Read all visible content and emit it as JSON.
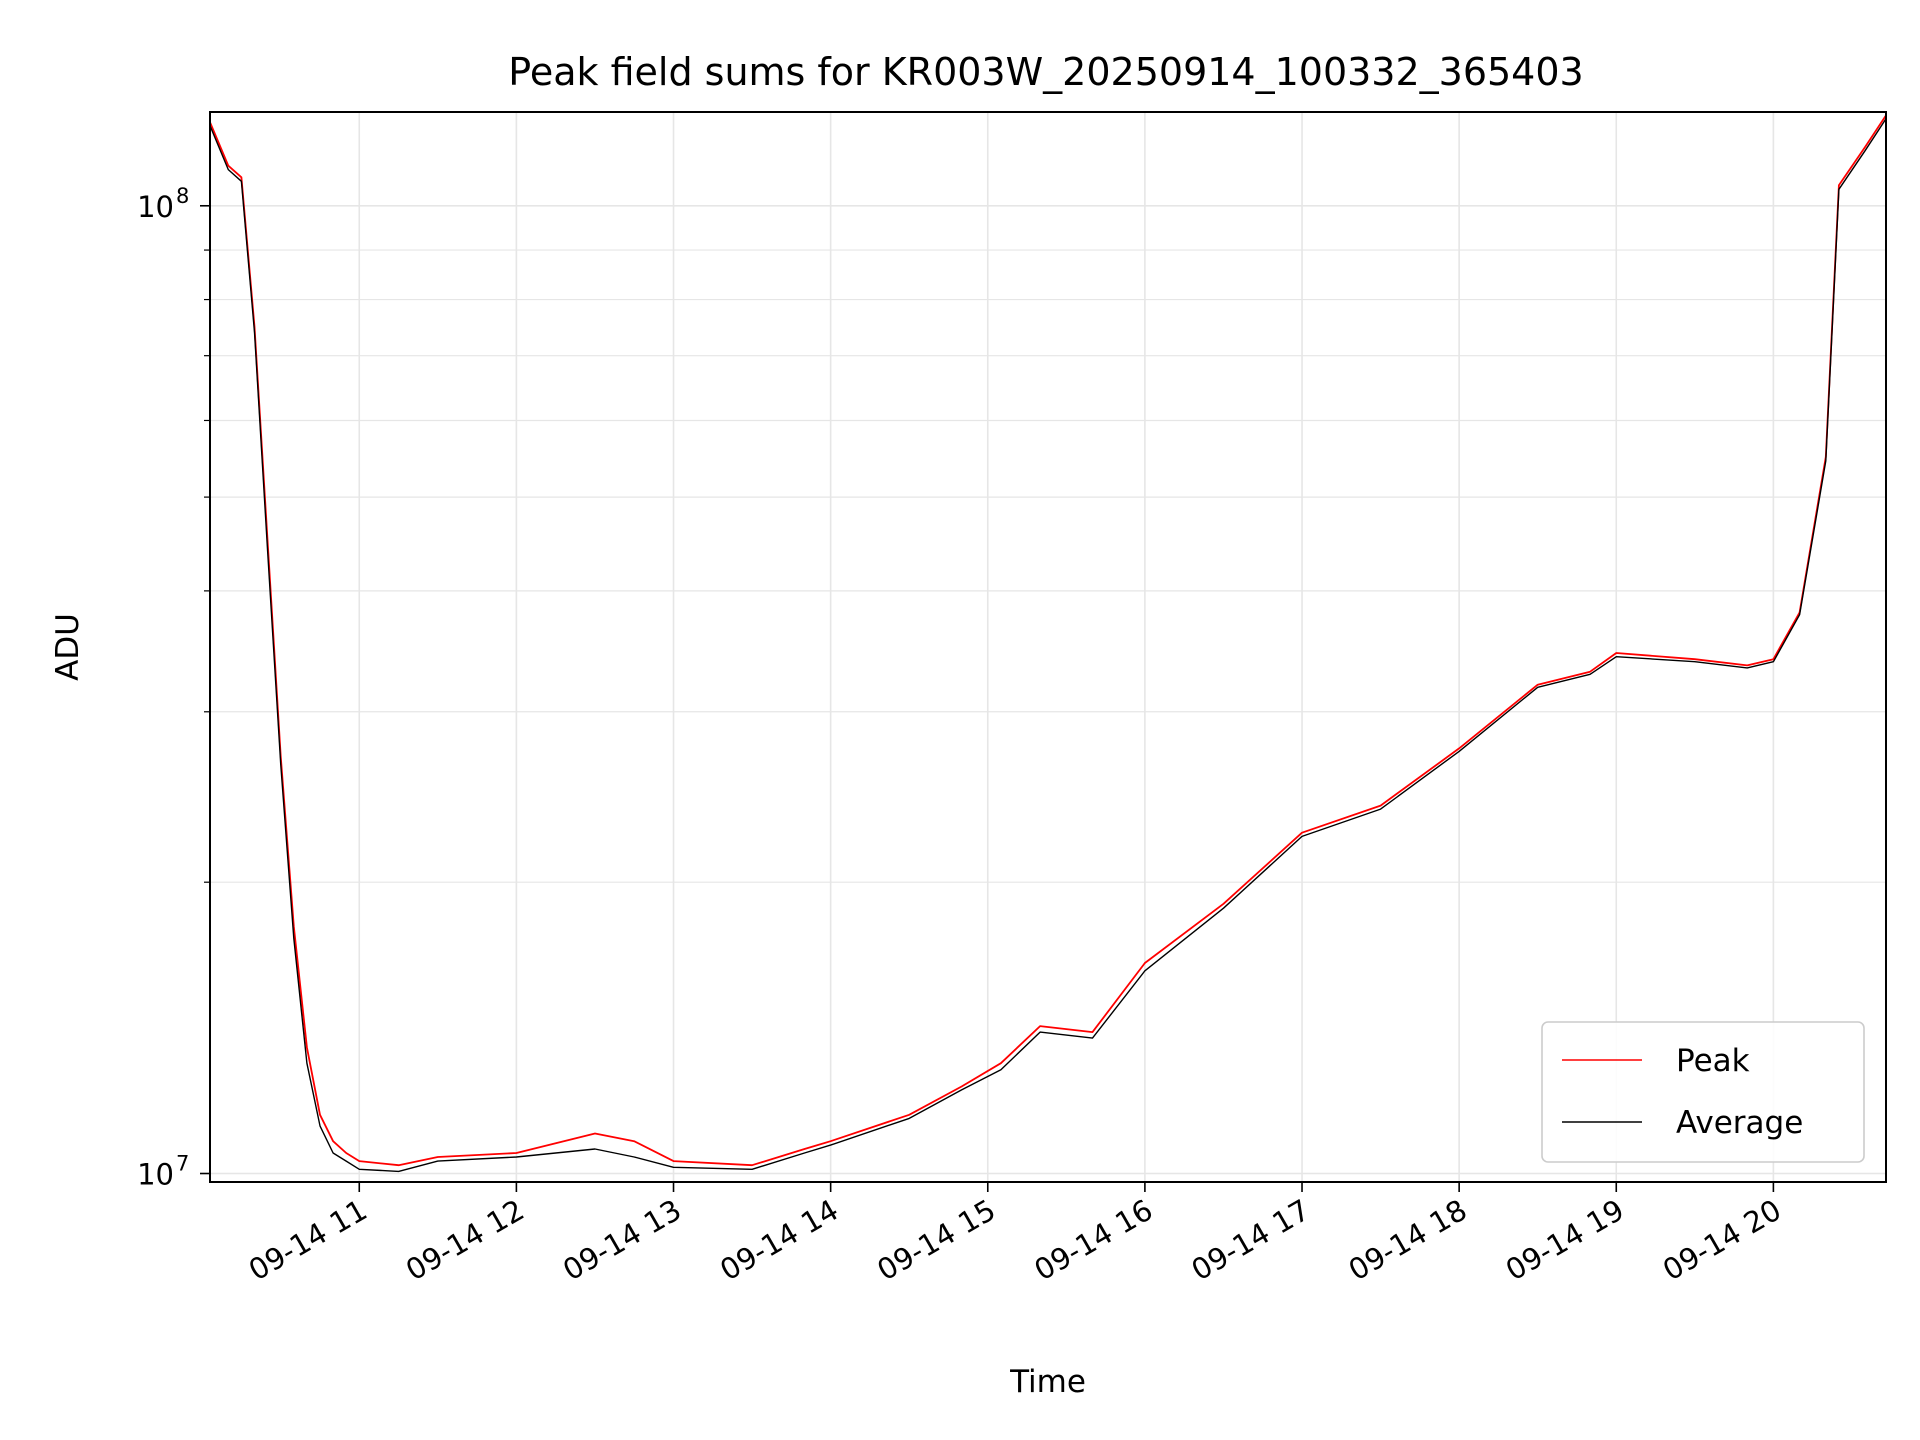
{
  "chart_data": {
    "type": "line",
    "title": "Peak field sums for KR003W_20250914_100332_365403",
    "xlabel": "Time",
    "ylabel": "ADU",
    "y_scale": "log",
    "ylim": [
      9800000,
      125000000
    ],
    "xlim": [
      "2025-09-14 10:03",
      "2025-09-14 20:43"
    ],
    "x_ticks": [
      "09-14 11",
      "09-14 12",
      "09-14 13",
      "09-14 14",
      "09-14 15",
      "09-14 16",
      "09-14 17",
      "09-14 18",
      "09-14 19",
      "09-14 20"
    ],
    "y_ticks": [
      {
        "base": "10",
        "exp": "7",
        "value": 10000000
      },
      {
        "base": "10",
        "exp": "8",
        "value": 100000000
      }
    ],
    "grid": true,
    "legend": "bottom-right",
    "series": [
      {
        "name": "Peak",
        "color": "#ff0000",
        "x": [
          "2025-09-14 10:03",
          "2025-09-14 10:10",
          "2025-09-14 10:15",
          "2025-09-14 10:20",
          "2025-09-14 10:25",
          "2025-09-14 10:30",
          "2025-09-14 10:35",
          "2025-09-14 10:40",
          "2025-09-14 10:45",
          "2025-09-14 10:50",
          "2025-09-14 10:55",
          "2025-09-14 11:00",
          "2025-09-14 11:15",
          "2025-09-14 11:30",
          "2025-09-14 12:00",
          "2025-09-14 12:30",
          "2025-09-14 12:45",
          "2025-09-14 13:00",
          "2025-09-14 13:30",
          "2025-09-14 13:50",
          "2025-09-14 14:00",
          "2025-09-14 14:30",
          "2025-09-14 14:50",
          "2025-09-14 15:05",
          "2025-09-14 15:20",
          "2025-09-14 15:40",
          "2025-09-14 16:00",
          "2025-09-14 16:30",
          "2025-09-14 17:00",
          "2025-09-14 17:30",
          "2025-09-14 18:00",
          "2025-09-14 18:30",
          "2025-09-14 18:50",
          "2025-09-14 19:00",
          "2025-09-14 19:30",
          "2025-09-14 19:50",
          "2025-09-14 20:00",
          "2025-09-14 20:10",
          "2025-09-14 20:20",
          "2025-09-14 20:25",
          "2025-09-14 20:35",
          "2025-09-14 20:43"
        ],
        "values": [
          122000000,
          110000000,
          107000000,
          75000000,
          45000000,
          27000000,
          18000000,
          13500000,
          11500000,
          10800000,
          10500000,
          10300000,
          10200000,
          10400000,
          10500000,
          11000000,
          10800000,
          10300000,
          10200000,
          10600000,
          10800000,
          11500000,
          12300000,
          13000000,
          14200000,
          14000000,
          16500000,
          19000000,
          22500000,
          24000000,
          27500000,
          32000000,
          33000000,
          34500000,
          34000000,
          33500000,
          34000000,
          38000000,
          55000000,
          105000000,
          115000000,
          124000000
        ]
      },
      {
        "name": "Average",
        "color": "#000000",
        "x": [
          "2025-09-14 10:03",
          "2025-09-14 10:10",
          "2025-09-14 10:15",
          "2025-09-14 10:20",
          "2025-09-14 10:25",
          "2025-09-14 10:30",
          "2025-09-14 10:35",
          "2025-09-14 10:40",
          "2025-09-14 10:45",
          "2025-09-14 10:50",
          "2025-09-14 10:55",
          "2025-09-14 11:00",
          "2025-09-14 11:15",
          "2025-09-14 11:30",
          "2025-09-14 12:00",
          "2025-09-14 12:30",
          "2025-09-14 12:45",
          "2025-09-14 13:00",
          "2025-09-14 13:30",
          "2025-09-14 13:50",
          "2025-09-14 14:00",
          "2025-09-14 14:30",
          "2025-09-14 14:50",
          "2025-09-14 15:05",
          "2025-09-14 15:20",
          "2025-09-14 15:40",
          "2025-09-14 16:00",
          "2025-09-14 16:30",
          "2025-09-14 17:00",
          "2025-09-14 17:30",
          "2025-09-14 18:00",
          "2025-09-14 18:30",
          "2025-09-14 18:50",
          "2025-09-14 19:00",
          "2025-09-14 19:30",
          "2025-09-14 19:50",
          "2025-09-14 20:00",
          "2025-09-14 20:10",
          "2025-09-14 20:20",
          "2025-09-14 20:25",
          "2025-09-14 20:35",
          "2025-09-14 20:43"
        ],
        "values": [
          121000000,
          109000000,
          106000000,
          74000000,
          44000000,
          26500000,
          17500000,
          13000000,
          11200000,
          10500000,
          10300000,
          10100000,
          10050000,
          10300000,
          10400000,
          10600000,
          10400000,
          10150000,
          10100000,
          10500000,
          10700000,
          11400000,
          12200000,
          12800000,
          14000000,
          13800000,
          16200000,
          18800000,
          22300000,
          23800000,
          27300000,
          31800000,
          32800000,
          34200000,
          33800000,
          33300000,
          33800000,
          37800000,
          54500000,
          104000000,
          114000000,
          123000000
        ]
      }
    ]
  }
}
